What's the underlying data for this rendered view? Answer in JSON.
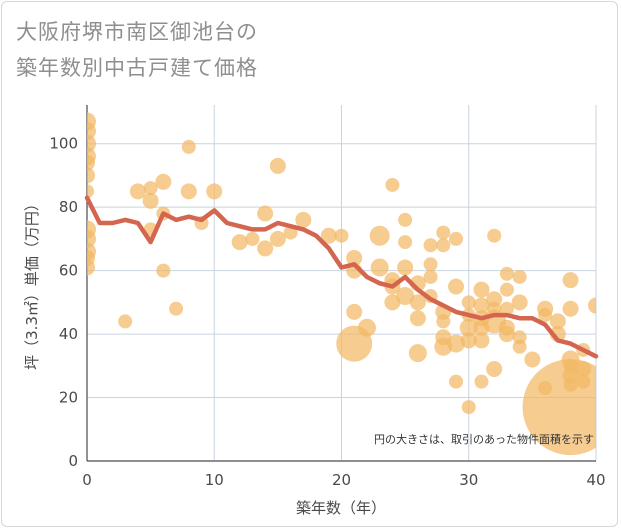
{
  "title_lines": [
    "大阪府堺市南区御池台の",
    "築年数別中古戸建て価格"
  ],
  "chart_data": {
    "type": "scatter",
    "title": "大阪府堺市南区御池台の築年数別中古戸建て価格",
    "xlabel": "築年数（年）",
    "ylabel": "坪（3.3㎡）単価（万円）",
    "xlim": [
      0,
      40
    ],
    "ylim": [
      0,
      110
    ],
    "x_ticks": [
      0,
      10,
      20,
      30,
      40
    ],
    "y_ticks": [
      0,
      20,
      40,
      60,
      80,
      100
    ],
    "grid": true,
    "note": "円の大きさは、取引のあった物件面積を示す",
    "colors": {
      "bubble": "#f3b865",
      "line": "#d4654f",
      "grid": "#c9d4e0"
    },
    "series": [
      {
        "kind": "line",
        "points": [
          [
            0,
            83
          ],
          [
            1,
            75
          ],
          [
            2,
            75
          ],
          [
            3,
            76
          ],
          [
            4,
            75
          ],
          [
            5,
            69
          ],
          [
            6,
            78
          ],
          [
            7,
            76
          ],
          [
            8,
            77
          ],
          [
            9,
            76
          ],
          [
            10,
            79
          ],
          [
            11,
            75
          ],
          [
            12,
            74
          ],
          [
            13,
            73
          ],
          [
            14,
            73
          ],
          [
            15,
            75
          ],
          [
            16,
            74
          ],
          [
            17,
            73
          ],
          [
            18,
            71
          ],
          [
            19,
            67
          ],
          [
            20,
            61
          ],
          [
            21,
            62
          ],
          [
            22,
            58
          ],
          [
            23,
            56
          ],
          [
            24,
            55
          ],
          [
            25,
            58
          ],
          [
            26,
            54
          ],
          [
            27,
            51
          ],
          [
            28,
            49
          ],
          [
            29,
            47
          ],
          [
            30,
            46
          ],
          [
            31,
            45
          ],
          [
            32,
            46
          ],
          [
            33,
            46
          ],
          [
            34,
            45
          ],
          [
            35,
            45
          ],
          [
            36,
            43
          ],
          [
            37,
            38
          ],
          [
            38,
            37
          ],
          [
            39,
            35
          ],
          [
            40,
            33
          ]
        ]
      },
      {
        "kind": "bubble",
        "points": [
          [
            0,
            107,
            9
          ],
          [
            0,
            104,
            9
          ],
          [
            0,
            100,
            9
          ],
          [
            0,
            96,
            9
          ],
          [
            0,
            94,
            8
          ],
          [
            0,
            90,
            8
          ],
          [
            0,
            85,
            7
          ],
          [
            0,
            73,
            9
          ],
          [
            0,
            70,
            9
          ],
          [
            0,
            66,
            9
          ],
          [
            0,
            64,
            8
          ],
          [
            0,
            61,
            8
          ],
          [
            3,
            44,
            7
          ],
          [
            4,
            85,
            8
          ],
          [
            5,
            86,
            7
          ],
          [
            5,
            82,
            8
          ],
          [
            5,
            73,
            7
          ],
          [
            6,
            88,
            8
          ],
          [
            6,
            78,
            7
          ],
          [
            6,
            60,
            7
          ],
          [
            7,
            48,
            7
          ],
          [
            8,
            99,
            7
          ],
          [
            8,
            85,
            8
          ],
          [
            9,
            75,
            7
          ],
          [
            10,
            85,
            8
          ],
          [
            12,
            69,
            8
          ],
          [
            13,
            70,
            7
          ],
          [
            14,
            78,
            8
          ],
          [
            14,
            67,
            8
          ],
          [
            15,
            93,
            8
          ],
          [
            15,
            70,
            8
          ],
          [
            16,
            72,
            7
          ],
          [
            17,
            76,
            8
          ],
          [
            19,
            71,
            8
          ],
          [
            20,
            71,
            7
          ],
          [
            21,
            64,
            8
          ],
          [
            21,
            60,
            8
          ],
          [
            21,
            47,
            8
          ],
          [
            21,
            37,
            18
          ],
          [
            22,
            42,
            9
          ],
          [
            23,
            71,
            10
          ],
          [
            23,
            61,
            9
          ],
          [
            24,
            87,
            7
          ],
          [
            24,
            57,
            8
          ],
          [
            24,
            50,
            8
          ],
          [
            24,
            55,
            8
          ],
          [
            25,
            76,
            7
          ],
          [
            25,
            69,
            7
          ],
          [
            25,
            61,
            8
          ],
          [
            25,
            52,
            9
          ],
          [
            26,
            56,
            8
          ],
          [
            26,
            50,
            8
          ],
          [
            26,
            45,
            8
          ],
          [
            26,
            34,
            9
          ],
          [
            27,
            68,
            7
          ],
          [
            27,
            62,
            7
          ],
          [
            27,
            58,
            7
          ],
          [
            27,
            52,
            7
          ],
          [
            28,
            72,
            7
          ],
          [
            28,
            68,
            7
          ],
          [
            28,
            47,
            8
          ],
          [
            28,
            44,
            7
          ],
          [
            28,
            39,
            8
          ],
          [
            28,
            36,
            9
          ],
          [
            29,
            70,
            7
          ],
          [
            29,
            55,
            8
          ],
          [
            29,
            37,
            9
          ],
          [
            29,
            25,
            7
          ],
          [
            30,
            50,
            7
          ],
          [
            30,
            46,
            7
          ],
          [
            30,
            42,
            9
          ],
          [
            30,
            38,
            8
          ],
          [
            30,
            17,
            7
          ],
          [
            31,
            54,
            8
          ],
          [
            31,
            49,
            8
          ],
          [
            31,
            45,
            8
          ],
          [
            31,
            42,
            8
          ],
          [
            31,
            38,
            8
          ],
          [
            31,
            25,
            7
          ],
          [
            32,
            71,
            7
          ],
          [
            32,
            51,
            8
          ],
          [
            32,
            48,
            7
          ],
          [
            32,
            44,
            12
          ],
          [
            32,
            29,
            8
          ],
          [
            33,
            59,
            7
          ],
          [
            33,
            54,
            7
          ],
          [
            33,
            48,
            7
          ],
          [
            33,
            42,
            8
          ],
          [
            33,
            40,
            8
          ],
          [
            34,
            58,
            7
          ],
          [
            34,
            50,
            8
          ],
          [
            34,
            39,
            7
          ],
          [
            34,
            36,
            7
          ],
          [
            35,
            32,
            8
          ],
          [
            36,
            48,
            8
          ],
          [
            36,
            46,
            7
          ],
          [
            36,
            23,
            7
          ],
          [
            37,
            44,
            8
          ],
          [
            37,
            40,
            8
          ],
          [
            38,
            57,
            8
          ],
          [
            38,
            48,
            8
          ],
          [
            38,
            32,
            9
          ],
          [
            38,
            30,
            7
          ],
          [
            38,
            27,
            8
          ],
          [
            38,
            24,
            7
          ],
          [
            39,
            25,
            7
          ],
          [
            39,
            29,
            8
          ],
          [
            39,
            35,
            7
          ],
          [
            38,
            17,
            48
          ],
          [
            40,
            49,
            8
          ]
        ]
      }
    ]
  }
}
